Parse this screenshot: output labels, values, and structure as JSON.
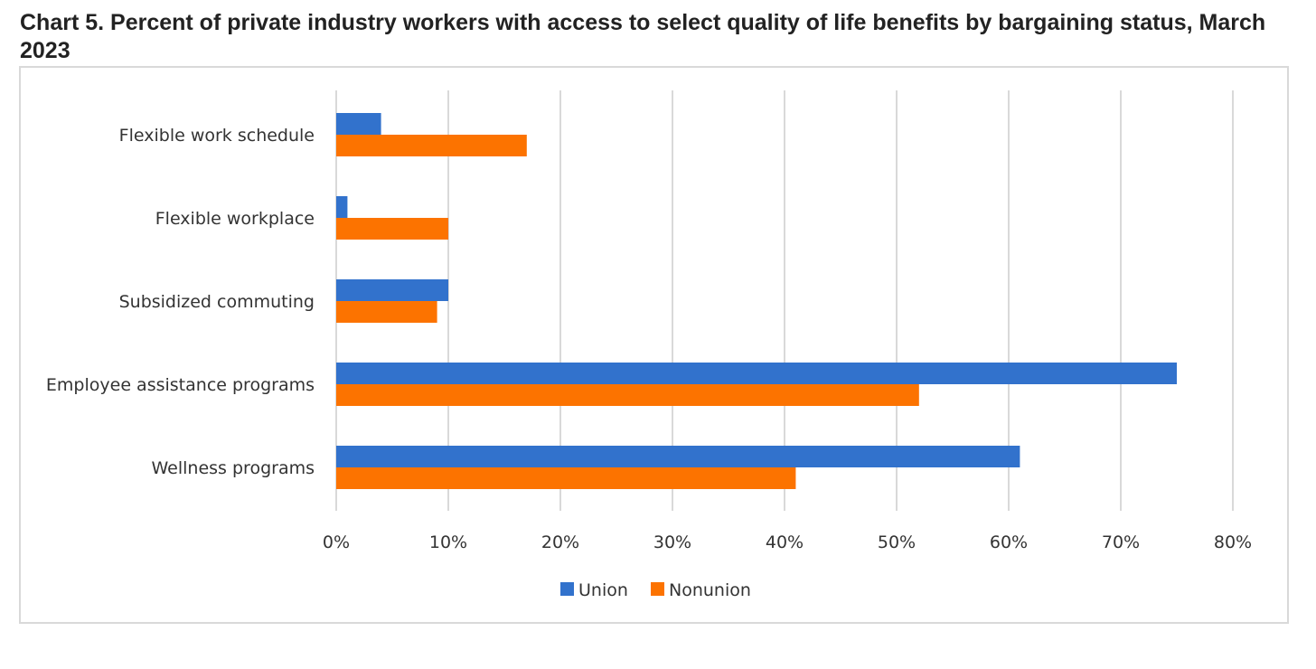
{
  "page": {
    "title": "Chart 5. Percent of private industry workers with access to select quality of life benefits by bargaining status, March 2023"
  },
  "chart_data": {
    "type": "bar",
    "orientation": "horizontal",
    "categories": [
      "Flexible work schedule",
      "Flexible workplace",
      "Subsidized commuting",
      "Employee assistance programs",
      "Wellness programs"
    ],
    "series": [
      {
        "name": "Union",
        "color": "#3272cc",
        "values": [
          4,
          1,
          10,
          75,
          61
        ]
      },
      {
        "name": "Nonunion",
        "color": "#fc7300",
        "values": [
          17,
          10,
          9,
          52,
          41
        ]
      }
    ],
    "xlim": [
      0,
      80
    ],
    "xticks": [
      "0%",
      "10%",
      "20%",
      "30%",
      "40%",
      "50%",
      "60%",
      "70%",
      "80%"
    ],
    "grid": true,
    "legend_position": "bottom",
    "gridline_color": "#d9d9d9"
  }
}
